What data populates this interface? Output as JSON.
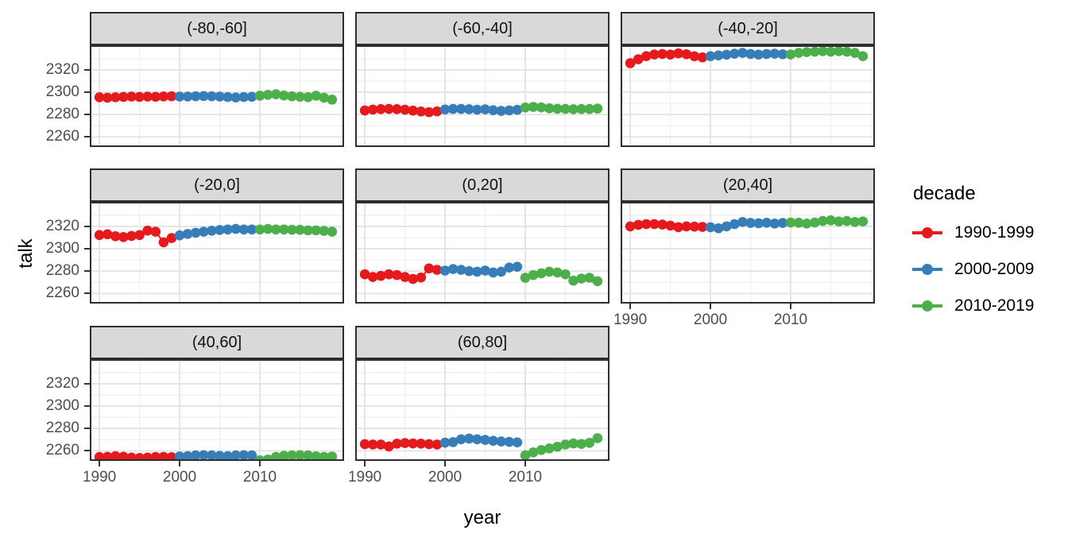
{
  "figure": {
    "x_axis_title": "year",
    "y_axis_title": "talk"
  },
  "legend": {
    "title": "decade",
    "entries": [
      {
        "label": "1990-1999",
        "color": "#E41A1C"
      },
      {
        "label": "2000-2009",
        "color": "#377EB8"
      },
      {
        "label": "2010-2019",
        "color": "#4DAF4A"
      }
    ]
  },
  "colors": {
    "red": "#E41A1C",
    "blue": "#377EB8",
    "green": "#4DAF4A",
    "strip_fill": "#D9D9D9",
    "panel_border": "#2e2e2e",
    "grid_major": "#E3E3E3",
    "grid_minor": "#F0F0F0",
    "tick_text": "#4d4d4d"
  },
  "chart_data": {
    "type": "scatter",
    "title": "",
    "xlabel": "year",
    "ylabel": "talk",
    "legend_position": "right",
    "grid": true,
    "xlim": [
      1988.8,
      2020.5
    ],
    "ylim": [
      2251,
      2342
    ],
    "x_ticks": [
      1990,
      2000,
      2010
    ],
    "y_ticks": [
      2320,
      2300,
      2280,
      2260
    ],
    "x_minor": [
      1995,
      2005,
      2015
    ],
    "y_minor": [
      2330,
      2310,
      2290,
      2270
    ],
    "years": [
      1990,
      1991,
      1992,
      1993,
      1994,
      1995,
      1996,
      1997,
      1998,
      1999,
      2000,
      2001,
      2002,
      2003,
      2004,
      2005,
      2006,
      2007,
      2008,
      2009,
      2010,
      2011,
      2012,
      2013,
      2014,
      2015,
      2016,
      2017,
      2018,
      2019
    ],
    "series_names": [
      "1990-1999",
      "2000-2009",
      "2010-2019"
    ],
    "series_colors": [
      "#E41A1C",
      "#377EB8",
      "#4DAF4A"
    ],
    "facets": [
      {
        "label": "(-80,-60]",
        "series": [
          {
            "name": "1990-1999",
            "values": [
              2295.5,
              2295.1,
              2295.5,
              2295.8,
              2296.1,
              2295.8,
              2296.1,
              2295.9,
              2296.2,
              2296.4
            ]
          },
          {
            "name": "2000-2009",
            "values": [
              2296.1,
              2296.1,
              2296.4,
              2296.6,
              2296.4,
              2296.1,
              2295.7,
              2295.3,
              2295.7,
              2295.9
            ]
          },
          {
            "name": "2010-2019",
            "values": [
              2296.9,
              2297.7,
              2298.2,
              2297.1,
              2296.4,
              2295.9,
              2295.6,
              2296.9,
              2295.1,
              2293.4
            ]
          }
        ]
      },
      {
        "label": "(-60,-40]",
        "series": [
          {
            "name": "1990-1999",
            "values": [
              2283.7,
              2284.5,
              2284.9,
              2285.1,
              2284.9,
              2284.4,
              2283.6,
              2282.8,
              2282.2,
              2282.9
            ]
          },
          {
            "name": "2000-2009",
            "values": [
              2284.6,
              2285.1,
              2285.1,
              2284.8,
              2284.4,
              2284.7,
              2283.9,
              2283.3,
              2283.8,
              2284.3
            ]
          },
          {
            "name": "2010-2019",
            "values": [
              2286.3,
              2286.9,
              2286.4,
              2285.6,
              2285.2,
              2285.1,
              2284.8,
              2285.0,
              2285.0,
              2285.4
            ]
          }
        ]
      },
      {
        "label": "(-40,-20]",
        "series": [
          {
            "name": "1990-1999",
            "values": [
              2326.0,
              2329.5,
              2332.3,
              2333.8,
              2334.2,
              2333.7,
              2334.8,
              2334.0,
              2332.2,
              2331.2
            ]
          },
          {
            "name": "2000-2009",
            "values": [
              2332.3,
              2333.0,
              2333.6,
              2334.5,
              2335.2,
              2334.2,
              2333.7,
              2334.2,
              2334.5,
              2334.0
            ]
          },
          {
            "name": "2010-2019",
            "values": [
              2333.8,
              2335.2,
              2335.9,
              2336.3,
              2336.7,
              2336.3,
              2336.7,
              2336.3,
              2335.2,
              2332.3
            ]
          }
        ]
      },
      {
        "label": "(-20,0]",
        "series": [
          {
            "name": "1990-1999",
            "values": [
              2312.3,
              2313.0,
              2311.2,
              2310.5,
              2311.5,
              2312.3,
              2316.3,
              2315.3,
              2305.8,
              2309.6
            ]
          },
          {
            "name": "2000-2009",
            "values": [
              2312.0,
              2313.3,
              2314.3,
              2315.3,
              2316.2,
              2316.8,
              2317.3,
              2317.8,
              2317.3,
              2317.3
            ]
          },
          {
            "name": "2010-2019",
            "values": [
              2317.3,
              2317.8,
              2317.3,
              2317.3,
              2317.0,
              2317.0,
              2316.5,
              2316.5,
              2316.0,
              2315.3
            ]
          }
        ]
      },
      {
        "label": "(0,20]",
        "series": [
          {
            "name": "1990-1999",
            "values": [
              2277.2,
              2274.8,
              2275.8,
              2277.2,
              2276.5,
              2274.8,
              2273.0,
              2274.3,
              2282.4,
              2281.2
            ]
          },
          {
            "name": "2000-2009",
            "values": [
              2280.5,
              2281.9,
              2281.2,
              2280.0,
              2279.5,
              2280.5,
              2278.8,
              2279.5,
              2283.2,
              2283.9
            ]
          },
          {
            "name": "2010-2019",
            "values": [
              2274.1,
              2276.5,
              2278.1,
              2279.5,
              2278.8,
              2277.2,
              2271.5,
              2273.4,
              2274.1,
              2271.0
            ]
          }
        ]
      },
      {
        "label": "(20,40]",
        "series": [
          {
            "name": "1990-1999",
            "values": [
              2320.0,
              2321.4,
              2322.1,
              2322.1,
              2321.7,
              2320.7,
              2319.3,
              2320.0,
              2319.8,
              2319.6
            ]
          },
          {
            "name": "2000-2009",
            "values": [
              2319.3,
              2318.3,
              2320.0,
              2322.1,
              2324.0,
              2323.1,
              2322.9,
              2323.3,
              2322.6,
              2323.1
            ]
          },
          {
            "name": "2010-2019",
            "values": [
              2323.5,
              2323.3,
              2322.6,
              2323.5,
              2324.9,
              2325.4,
              2324.5,
              2324.9,
              2324.0,
              2324.5
            ]
          }
        ]
      },
      {
        "label": "(40,60]",
        "series": [
          {
            "name": "1990-1999",
            "values": [
              2254.5,
              2254.7,
              2255.2,
              2254.8,
              2254.0,
              2253.6,
              2254.0,
              2254.5,
              2254.6,
              2254.3
            ]
          },
          {
            "name": "2000-2009",
            "values": [
              2255.0,
              2255.3,
              2255.9,
              2256.1,
              2255.9,
              2255.5,
              2255.2,
              2255.9,
              2256.1,
              2255.9
            ]
          },
          {
            "name": "2010-2019",
            "values": [
              2251.6,
              2252.2,
              2254.6,
              2255.6,
              2255.9,
              2256.1,
              2255.9,
              2255.1,
              2254.6,
              2254.9
            ]
          }
        ]
      },
      {
        "label": "(60,80]",
        "series": [
          {
            "name": "1990-1999",
            "values": [
              2266.0,
              2265.6,
              2265.6,
              2263.9,
              2266.4,
              2267.0,
              2266.6,
              2266.4,
              2266.0,
              2265.6
            ]
          },
          {
            "name": "2000-2009",
            "values": [
              2267.3,
              2267.8,
              2270.3,
              2271.0,
              2270.3,
              2269.8,
              2269.0,
              2268.4,
              2268.0,
              2267.6
            ]
          },
          {
            "name": "2010-2019",
            "values": [
              2256.0,
              2258.6,
              2260.7,
              2262.2,
              2263.7,
              2265.6,
              2266.6,
              2266.2,
              2267.1,
              2271.3
            ]
          }
        ]
      }
    ]
  }
}
